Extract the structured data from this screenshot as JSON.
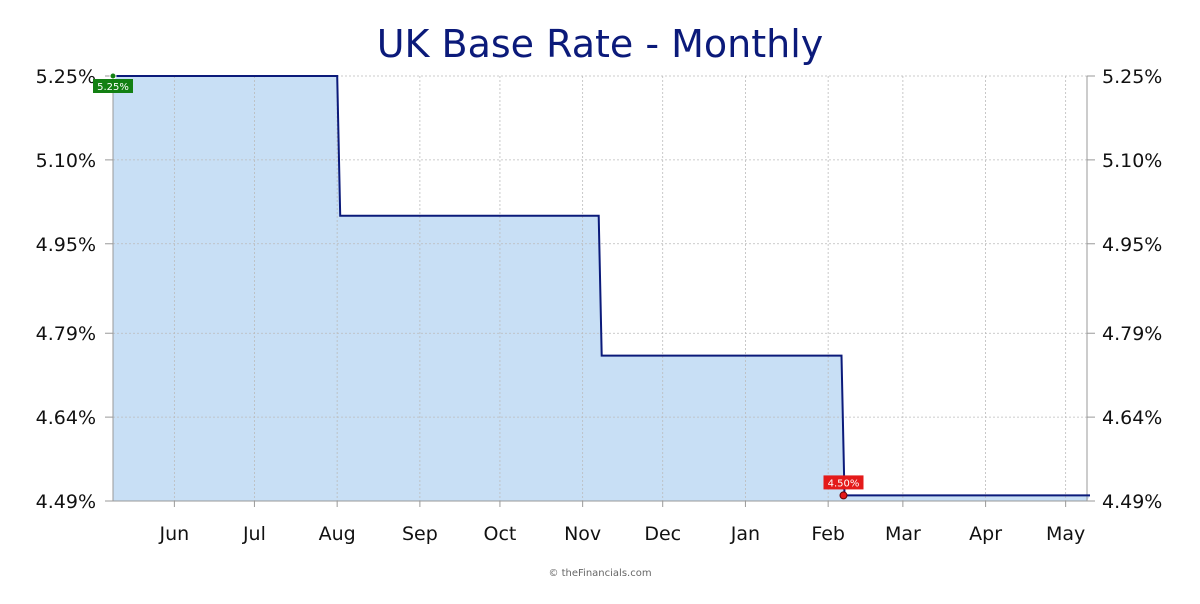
{
  "chart_data": {
    "type": "area",
    "title": "UK Base Rate - Monthly",
    "source": "© theFinancials.com",
    "y_ticks": [
      "4.49%",
      "4.64%",
      "4.79%",
      "4.95%",
      "5.10%",
      "5.25%"
    ],
    "y_tick_values": [
      4.49,
      4.64,
      4.79,
      4.95,
      5.1,
      5.25
    ],
    "ylim": [
      4.49,
      5.25
    ],
    "x_ticks": [
      "Jun",
      "Jul",
      "Aug",
      "Sep",
      "Oct",
      "Nov",
      "Dec",
      "Jan",
      "Feb",
      "Mar",
      "Apr",
      "May"
    ],
    "x_tick_dates": [
      "2024-06-01",
      "2024-07-01",
      "2024-08-01",
      "2024-09-01",
      "2024-10-01",
      "2024-11-01",
      "2024-12-01",
      "2025-01-01",
      "2025-02-01",
      "2025-03-01",
      "2025-04-01",
      "2025-05-01"
    ],
    "xlim": [
      "2024-05-09",
      "2025-05-09"
    ],
    "grid": true,
    "series": [
      {
        "step": "post",
        "x": [
          "2024-05-09",
          "2024-08-01",
          "2024-11-07",
          "2025-02-06",
          "2025-05-09"
        ],
        "values": [
          5.25,
          5.0,
          4.75,
          4.5,
          4.5
        ]
      }
    ],
    "start_label": {
      "x": "2024-05-09",
      "value": 5.25,
      "text": "5.25%"
    },
    "end_label": {
      "x": "2025-02-06",
      "value": 4.5,
      "text": "4.50%"
    },
    "colors": {
      "line": "#0b1a7a",
      "fill": "#c8dff5",
      "grid": "#bbbbbb",
      "start_label_bg": "#138013",
      "end_label_bg": "#e41a1a",
      "title": "#0b1a7a"
    }
  }
}
